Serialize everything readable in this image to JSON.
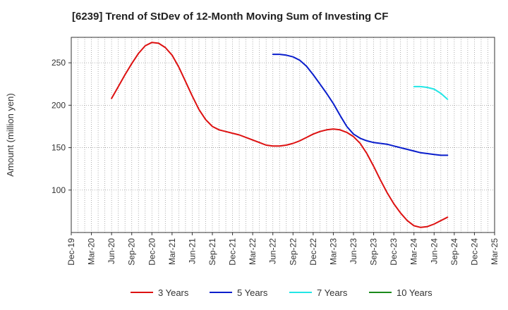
{
  "chart_data": {
    "type": "line",
    "title": "[6239]  Trend of StDev of 12-Month Moving Sum of Investing CF",
    "xlabel": "",
    "ylabel": "Amount (million yen)",
    "ylim": [
      50,
      280
    ],
    "yticks": [
      100,
      150,
      200,
      250
    ],
    "xticks": [
      "Dec-19",
      "Mar-20",
      "Jun-20",
      "Sep-20",
      "Dec-20",
      "Mar-21",
      "Jun-21",
      "Sep-21",
      "Dec-21",
      "Mar-22",
      "Jun-22",
      "Sep-22",
      "Dec-22",
      "Mar-23",
      "Jun-23",
      "Sep-23",
      "Dec-23",
      "Mar-24",
      "Jun-24",
      "Sep-24",
      "Dec-24",
      "Mar-25"
    ],
    "grid": true,
    "legend_position": "bottom",
    "series": [
      {
        "name": "3 Years",
        "color": "#dd1111",
        "points": [
          [
            "Jun-20",
            208
          ],
          [
            "Jul-20",
            222
          ],
          [
            "Aug-20",
            236
          ],
          [
            "Sep-20",
            249
          ],
          [
            "Oct-20",
            261
          ],
          [
            "Nov-20",
            270
          ],
          [
            "Dec-20",
            274
          ],
          [
            "Jan-21",
            273
          ],
          [
            "Feb-21",
            268
          ],
          [
            "Mar-21",
            259
          ],
          [
            "Apr-21",
            245
          ],
          [
            "May-21",
            228
          ],
          [
            "Jun-21",
            211
          ],
          [
            "Jul-21",
            195
          ],
          [
            "Aug-21",
            183
          ],
          [
            "Sep-21",
            175
          ],
          [
            "Oct-21",
            171
          ],
          [
            "Nov-21",
            169
          ],
          [
            "Dec-21",
            167
          ],
          [
            "Jan-22",
            165
          ],
          [
            "Feb-22",
            162
          ],
          [
            "Mar-22",
            159
          ],
          [
            "Apr-22",
            156
          ],
          [
            "May-22",
            153
          ],
          [
            "Jun-22",
            152
          ],
          [
            "Jul-22",
            152
          ],
          [
            "Aug-22",
            153
          ],
          [
            "Sep-22",
            155
          ],
          [
            "Oct-22",
            158
          ],
          [
            "Nov-22",
            162
          ],
          [
            "Dec-22",
            166
          ],
          [
            "Jan-23",
            169
          ],
          [
            "Feb-23",
            171
          ],
          [
            "Mar-23",
            172
          ],
          [
            "Apr-23",
            171
          ],
          [
            "May-23",
            168
          ],
          [
            "Jun-23",
            163
          ],
          [
            "Jul-23",
            155
          ],
          [
            "Aug-23",
            143
          ],
          [
            "Sep-23",
            128
          ],
          [
            "Oct-23",
            112
          ],
          [
            "Nov-23",
            97
          ],
          [
            "Dec-23",
            84
          ],
          [
            "Jan-24",
            73
          ],
          [
            "Feb-24",
            64
          ],
          [
            "Mar-24",
            58
          ],
          [
            "Apr-24",
            56
          ],
          [
            "May-24",
            57
          ],
          [
            "Jun-24",
            60
          ],
          [
            "Jul-24",
            64
          ],
          [
            "Aug-24",
            68
          ]
        ]
      },
      {
        "name": "5 Years",
        "color": "#0a1ecc",
        "points": [
          [
            "Jun-22",
            260
          ],
          [
            "Jul-22",
            260
          ],
          [
            "Aug-22",
            259
          ],
          [
            "Sep-22",
            257
          ],
          [
            "Oct-22",
            253
          ],
          [
            "Nov-22",
            246
          ],
          [
            "Dec-22",
            236
          ],
          [
            "Jan-23",
            225
          ],
          [
            "Feb-23",
            214
          ],
          [
            "Mar-23",
            202
          ],
          [
            "Apr-23",
            188
          ],
          [
            "May-23",
            175
          ],
          [
            "Jun-23",
            166
          ],
          [
            "Jul-23",
            161
          ],
          [
            "Aug-23",
            158
          ],
          [
            "Sep-23",
            156
          ],
          [
            "Oct-23",
            155
          ],
          [
            "Nov-23",
            154
          ],
          [
            "Dec-23",
            152
          ],
          [
            "Jan-24",
            150
          ],
          [
            "Feb-24",
            148
          ],
          [
            "Mar-24",
            146
          ],
          [
            "Apr-24",
            144
          ],
          [
            "May-24",
            143
          ],
          [
            "Jun-24",
            142
          ],
          [
            "Jul-24",
            141
          ],
          [
            "Aug-24",
            141
          ]
        ]
      },
      {
        "name": "7 Years",
        "color": "#22e6e6",
        "points": [
          [
            "Mar-24",
            222
          ],
          [
            "Apr-24",
            222
          ],
          [
            "May-24",
            221
          ],
          [
            "Jun-24",
            219
          ],
          [
            "Jul-24",
            214
          ],
          [
            "Aug-24",
            207
          ]
        ]
      },
      {
        "name": "10 Years",
        "color": "#1a8a1a",
        "points": []
      }
    ]
  }
}
